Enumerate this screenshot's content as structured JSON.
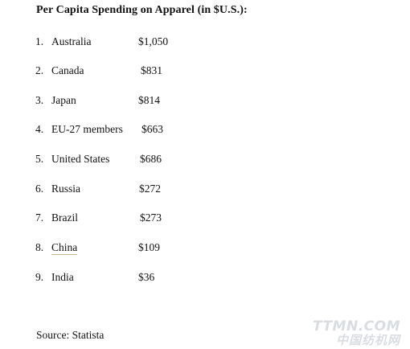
{
  "title": "Per Capita Spending on Apparel (in $U.S.):",
  "items": [
    {
      "num": "1.",
      "country": "Australia",
      "value": "$1,050",
      "linked": false
    },
    {
      "num": "2.",
      "country": "Canada",
      "value": "$831",
      "linked": false
    },
    {
      "num": "3.",
      "country": "Japan",
      "value": "$814",
      "linked": false
    },
    {
      "num": "4.",
      "country": "EU-27 members",
      "value": "$663",
      "linked": false
    },
    {
      "num": "5.",
      "country": "United States",
      "value": "$686",
      "linked": false
    },
    {
      "num": "6.",
      "country": "Russia",
      "value": "$272",
      "linked": false
    },
    {
      "num": "7.",
      "country": "Brazil",
      "value": "$273",
      "linked": false
    },
    {
      "num": "8.",
      "country": "China",
      "value": "$109",
      "linked": true
    },
    {
      "num": "9.",
      "country": "India",
      "value": "$36",
      "linked": false
    }
  ],
  "source": "Source: Statista",
  "watermark": {
    "line1": "TTMN.COM",
    "line2": "中国纺机网"
  }
}
